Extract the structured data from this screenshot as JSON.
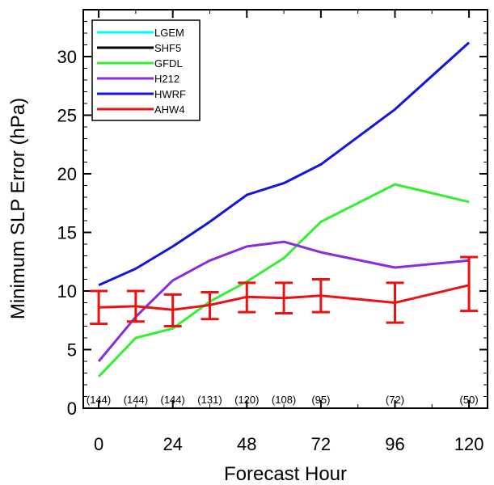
{
  "chart_data": {
    "type": "line",
    "xlabel": "Forecast Hour",
    "ylabel": "Minimum SLP Error (hPa)",
    "xlim": [
      -5,
      126
    ],
    "ylim": [
      0,
      34
    ],
    "xticks": [
      0,
      24,
      48,
      72,
      96,
      120
    ],
    "yticks": [
      0,
      5,
      10,
      15,
      20,
      25,
      30
    ],
    "xtick_labels": [
      "0",
      "24",
      "48",
      "72",
      "96",
      "120"
    ],
    "ytick_labels": [
      "0",
      "5",
      "10",
      "15",
      "20",
      "25",
      "30"
    ],
    "grid": false,
    "legend_position": "top-left",
    "series": [
      {
        "name": "LGEM",
        "color": "#00ffff",
        "x": [],
        "y": []
      },
      {
        "name": "SHF5",
        "color": "#000000",
        "x": [],
        "y": []
      },
      {
        "name": "GFDL",
        "color": "#33ee33",
        "x": [
          0,
          12,
          24,
          36,
          48,
          60,
          72,
          96,
          120
        ],
        "y": [
          2.7,
          6.0,
          6.8,
          9.1,
          10.8,
          12.8,
          15.9,
          19.1,
          17.6
        ]
      },
      {
        "name": "H212",
        "color": "#8a2be2",
        "x": [
          0,
          12,
          24,
          36,
          48,
          60,
          72,
          96,
          120
        ],
        "y": [
          4.0,
          7.8,
          10.9,
          12.6,
          13.8,
          14.2,
          13.3,
          12.0,
          12.6
        ]
      },
      {
        "name": "HWRF",
        "color": "#1414e0",
        "x": [
          0,
          12,
          24,
          36,
          48,
          60,
          72,
          96,
          120
        ],
        "y": [
          10.5,
          11.9,
          13.8,
          15.9,
          18.2,
          19.2,
          20.8,
          25.5,
          31.2
        ]
      },
      {
        "name": "AHW4",
        "color": "#ee1111",
        "x": [
          0,
          12,
          24,
          36,
          48,
          60,
          72,
          96,
          120
        ],
        "y": [
          8.6,
          8.7,
          8.4,
          8.8,
          9.5,
          9.4,
          9.6,
          9.0,
          10.5
        ],
        "error_low": [
          7.2,
          7.4,
          7.0,
          7.6,
          8.2,
          8.1,
          8.2,
          7.3,
          8.3
        ],
        "error_high": [
          10.0,
          10.0,
          9.7,
          9.9,
          10.7,
          10.7,
          11.0,
          10.7,
          12.9
        ]
      }
    ],
    "sample_counts": {
      "x": [
        0,
        12,
        24,
        36,
        48,
        60,
        72,
        96,
        120
      ],
      "labels": [
        "(144)",
        "(144)",
        "(144)",
        "(131)",
        "(120)",
        "(108)",
        "(95)",
        "(72)",
        "(50)"
      ],
      "y": 0.7
    }
  }
}
